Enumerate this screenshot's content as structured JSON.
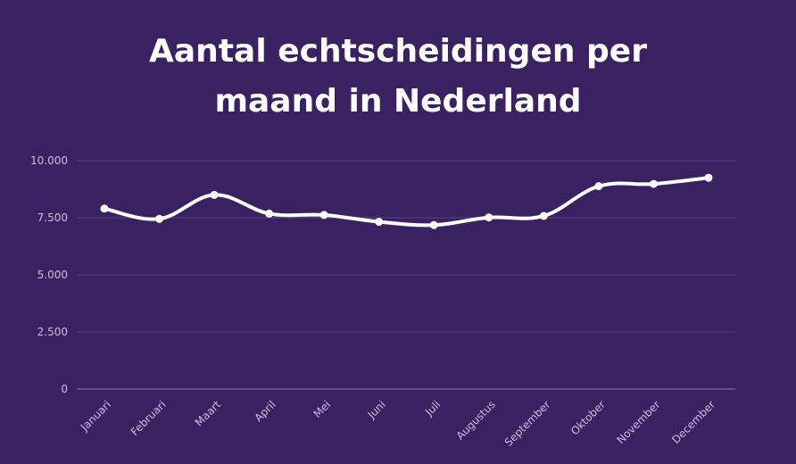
{
  "chart_data": {
    "type": "line",
    "title": "Aantal echtscheidingen per\nmaand in Nederland",
    "xlabel": "",
    "ylabel": "",
    "categories": [
      "Januari",
      "Februari",
      "Maart",
      "April",
      "Mei",
      "Juni",
      "Juli",
      "Augustus",
      "September",
      "Oktober",
      "November",
      "December"
    ],
    "series": [
      {
        "values": [
          7900,
          7450,
          8500,
          7680,
          7620,
          7320,
          7180,
          7510,
          7580,
          8880,
          8980,
          9250
        ]
      }
    ],
    "ylim": [
      0,
      10000
    ],
    "yticks": [
      0,
      2500,
      5000,
      7500,
      10000
    ],
    "ytick_labels": [
      "0",
      "2.500",
      "5.000",
      "7.500",
      "10.000"
    ],
    "grid": true,
    "smooth": true,
    "colors": {
      "background": "#3a2162",
      "line": "#ffffff",
      "grid": "#5b4785",
      "tick_text": "#c9bfdc"
    }
  }
}
